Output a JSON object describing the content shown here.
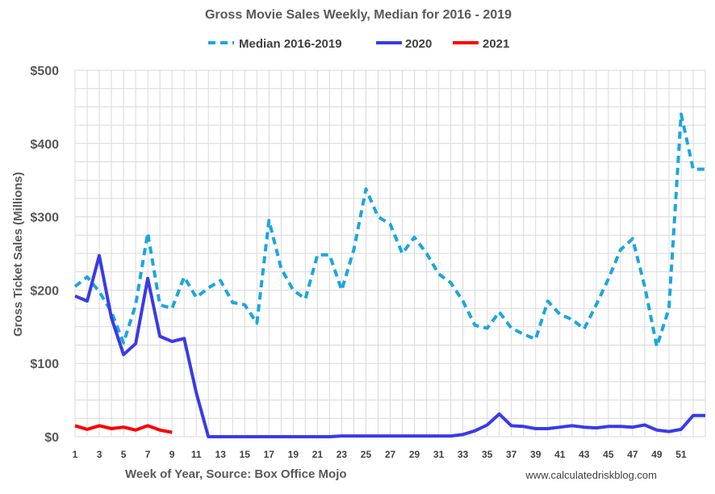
{
  "chart_data": {
    "type": "line",
    "title": "Gross Movie Sales Weekly, Median for 2016 - 2019",
    "xlabel": "Week of Year, Source: Box Office Mojo",
    "ylabel": "Gross Ticket Sales (Millions)",
    "source_note": "www.calculatedriskblog.com",
    "xlim": [
      1,
      53
    ],
    "ylim": [
      0,
      500
    ],
    "y_ticks": [
      0,
      100,
      200,
      300,
      400,
      500
    ],
    "y_tick_labels": [
      "$0",
      "$100",
      "$200",
      "$300",
      "$400",
      "$500"
    ],
    "x_tick_labels": [
      "1",
      "3",
      "5",
      "7",
      "9",
      "11",
      "13",
      "15",
      "17",
      "19",
      "21",
      "23",
      "25",
      "27",
      "29",
      "31",
      "33",
      "35",
      "37",
      "39",
      "41",
      "43",
      "45",
      "47",
      "49",
      "51"
    ],
    "x_tick_values": [
      1,
      3,
      5,
      7,
      9,
      11,
      13,
      15,
      17,
      19,
      21,
      23,
      25,
      27,
      29,
      31,
      33,
      35,
      37,
      39,
      41,
      43,
      45,
      47,
      49,
      51
    ],
    "grid": true,
    "legend_position": "top",
    "series": [
      {
        "name": "Median 2016-2019",
        "color": "#1aa6e0",
        "dash": true,
        "x": [
          1,
          2,
          3,
          4,
          5,
          6,
          7,
          8,
          9,
          10,
          11,
          12,
          13,
          14,
          15,
          16,
          17,
          18,
          19,
          20,
          21,
          22,
          23,
          24,
          25,
          26,
          27,
          28,
          29,
          30,
          31,
          32,
          33,
          34,
          35,
          36,
          37,
          38,
          39,
          40,
          41,
          42,
          43,
          44,
          45,
          46,
          47,
          48,
          49,
          50,
          51,
          52,
          53
        ],
        "values": [
          205,
          218,
          198,
          170,
          128,
          180,
          278,
          180,
          175,
          218,
          190,
          203,
          213,
          183,
          180,
          155,
          295,
          230,
          200,
          188,
          248,
          248,
          200,
          255,
          338,
          300,
          290,
          250,
          272,
          250,
          222,
          210,
          185,
          152,
          148,
          170,
          148,
          140,
          133,
          185,
          167,
          160,
          147,
          180,
          215,
          255,
          270,
          205,
          123,
          175,
          440,
          365,
          365
        ]
      },
      {
        "name": "2020",
        "color": "#3a3ae8",
        "dash": false,
        "x": [
          1,
          2,
          3,
          4,
          5,
          6,
          7,
          8,
          9,
          10,
          11,
          12,
          13,
          14,
          15,
          16,
          17,
          18,
          19,
          20,
          21,
          22,
          23,
          24,
          25,
          26,
          27,
          28,
          29,
          30,
          31,
          32,
          33,
          34,
          35,
          36,
          37,
          38,
          39,
          40,
          41,
          42,
          43,
          44,
          45,
          46,
          47,
          48,
          49,
          50,
          51,
          52,
          53
        ],
        "values": [
          192,
          185,
          247,
          162,
          112,
          127,
          216,
          137,
          130,
          134,
          60,
          0,
          0,
          0,
          0,
          0,
          0,
          0,
          0,
          0,
          0,
          0,
          1,
          1,
          1,
          1,
          1,
          1,
          1,
          1,
          1,
          1,
          3,
          8,
          16,
          31,
          15,
          14,
          11,
          11,
          13,
          15,
          13,
          12,
          14,
          14,
          13,
          16,
          9,
          7,
          10,
          29,
          29
        ]
      },
      {
        "name": "2021",
        "color": "#ff0000",
        "dash": false,
        "x": [
          1,
          2,
          3,
          4,
          5,
          6,
          7,
          8,
          9
        ],
        "values": [
          15,
          10,
          15,
          11,
          13,
          9,
          15,
          9,
          6
        ]
      }
    ]
  }
}
